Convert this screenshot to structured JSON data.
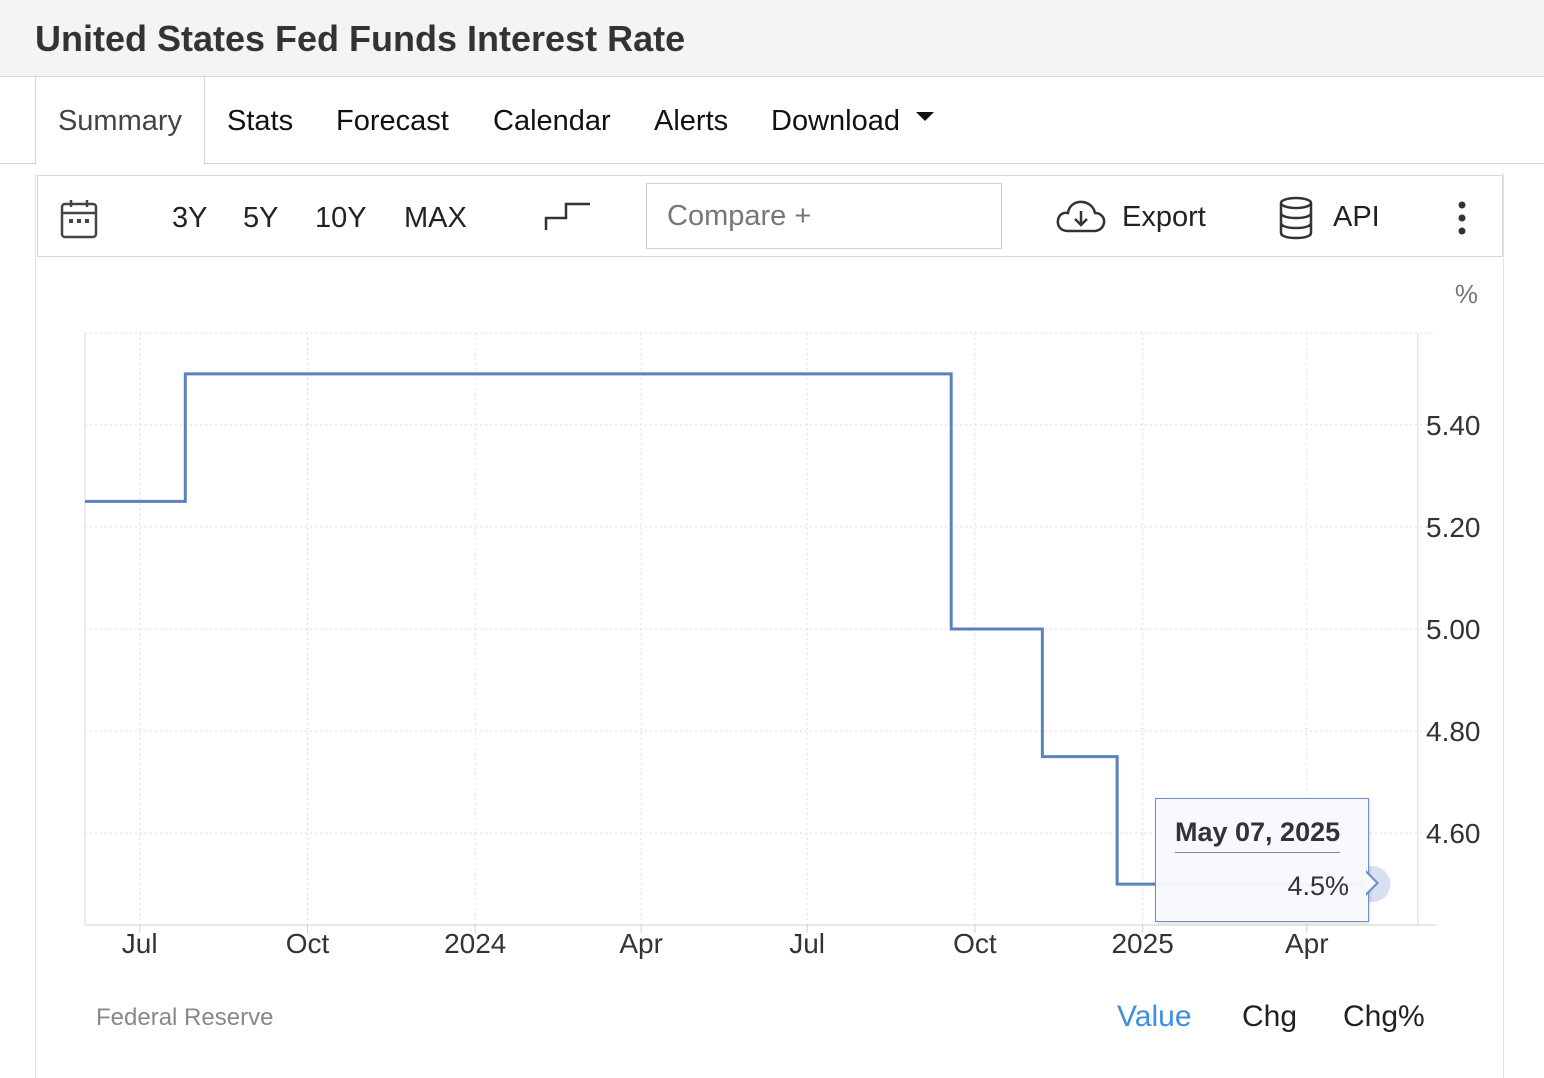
{
  "page": {
    "title": "United States Fed Funds Interest Rate"
  },
  "tabs": [
    {
      "label": "Summary",
      "active": true
    },
    {
      "label": "Stats"
    },
    {
      "label": "Forecast"
    },
    {
      "label": "Calendar"
    },
    {
      "label": "Alerts"
    },
    {
      "label": "Download",
      "has_dropdown": true
    }
  ],
  "toolbar": {
    "calendar_icon": "calendar-icon",
    "ranges": [
      "3Y",
      "5Y",
      "10Y",
      "MAX"
    ],
    "chart_type_icon": "step-line-icon",
    "compare_placeholder": "Compare +",
    "export_label": "Export",
    "export_icon": "cloud-download-icon",
    "api_label": "API",
    "api_icon": "database-icon",
    "more_icon": "vertical-dots-icon"
  },
  "tooltip": {
    "date": "May 07, 2025",
    "value": "4.5%"
  },
  "source": "Federal Reserve",
  "value_toggle": {
    "options": [
      "Value",
      "Chg",
      "Chg%"
    ],
    "selected": "Value"
  },
  "colors": {
    "line": "#5b82bd",
    "active_toggle": "#3d8fde",
    "grid": "#dcdcdc"
  },
  "chart_data": {
    "type": "line",
    "step": true,
    "unit_label": "%",
    "x": [
      "2023-06-14",
      "2023-07-26",
      "2024-09-18",
      "2024-11-07",
      "2024-12-18",
      "2025-05-07"
    ],
    "y": [
      5.25,
      5.5,
      5.0,
      4.75,
      4.5,
      4.5
    ],
    "x_ticks": [
      "Jul",
      "Oct",
      "2024",
      "Apr",
      "Jul",
      "Oct",
      "2025",
      "Apr"
    ],
    "y_ticks": [
      "5.40",
      "5.20",
      "5.00",
      "4.80",
      "4.60"
    ],
    "ylim": [
      4.42,
      5.58
    ],
    "grid": true,
    "y_axis_position": "right",
    "highlight_point": {
      "x": "2025-05-07",
      "y": 4.5
    }
  }
}
